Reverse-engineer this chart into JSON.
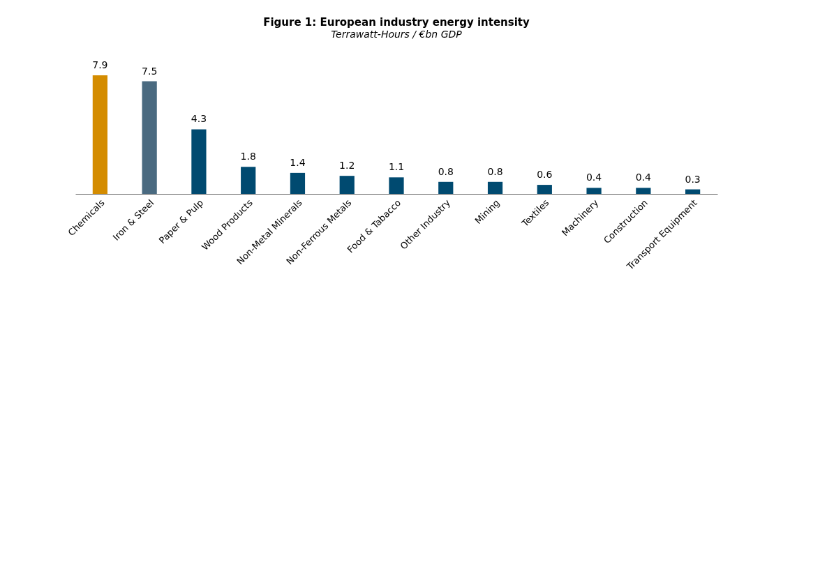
{
  "chart_data": {
    "type": "bar",
    "title": "Figure 1: European industry energy intensity",
    "subtitle": "Terrawatt-Hours / €bn GDP",
    "categories": [
      "Chemicals",
      "Iron & Steel",
      "Paper & Pulp",
      "Wood Products",
      "Non-Metal Minerals",
      "Non-Ferrous Metals",
      "Food & Tabacco",
      "Other Industry",
      "Mining",
      "Textiles",
      "Machinery",
      "Construction",
      "Transport Equipment"
    ],
    "values": [
      7.9,
      7.5,
      4.3,
      1.8,
      1.4,
      1.2,
      1.1,
      0.8,
      0.8,
      0.6,
      0.4,
      0.4,
      0.3
    ],
    "colors": [
      "#d48c00",
      "#4a6a80",
      "#004a70",
      "#004a70",
      "#004a70",
      "#004a70",
      "#004a70",
      "#004a70",
      "#004a70",
      "#004a70",
      "#004a70",
      "#004a70",
      "#004a70"
    ],
    "data_labels": true
  }
}
